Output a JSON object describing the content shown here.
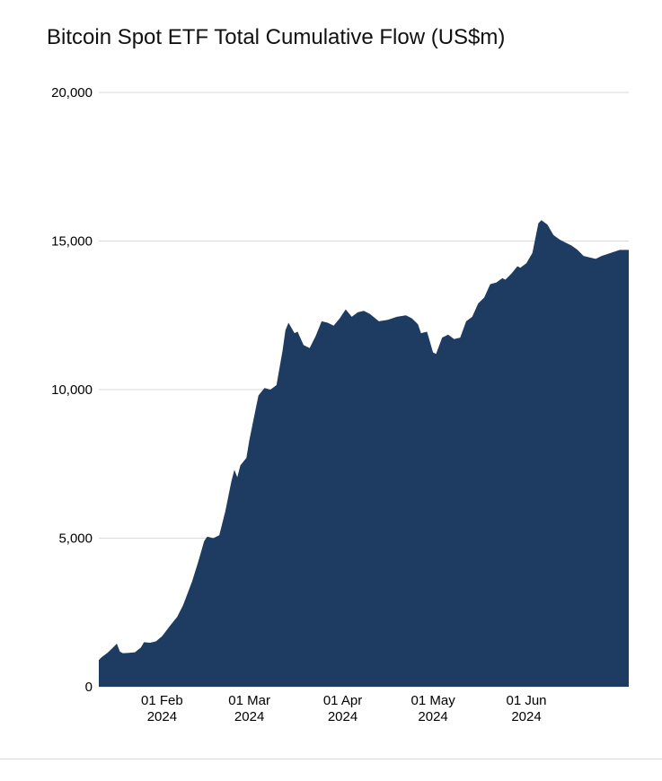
{
  "title": "Bitcoin Spot ETF Total Cumulative Flow (US$m)",
  "colors": {
    "area": "#1e3c61",
    "grid": "#d9d9d9",
    "axis_text": "#000000",
    "background": "#ffffff"
  },
  "chart_data": {
    "type": "area",
    "title": "Bitcoin Spot ETF Total Cumulative Flow (US$m)",
    "xlabel": "",
    "ylabel": "",
    "ylim": [
      0,
      20000
    ],
    "yticks": [
      0,
      5000,
      10000,
      15000,
      20000
    ],
    "ytick_labels": [
      "0",
      "5,000",
      "10,000",
      "15,000",
      "20,000"
    ],
    "x_range": [
      0,
      176
    ],
    "x_unit": "days since 11 Jan 2024",
    "xticks": [
      {
        "day": 21,
        "label": [
          "01 Feb",
          "2024"
        ]
      },
      {
        "day": 50,
        "label": [
          "01 Mar",
          "2024"
        ]
      },
      {
        "day": 81,
        "label": [
          "01 Apr",
          "2024"
        ]
      },
      {
        "day": 111,
        "label": [
          "01 May",
          "2024"
        ]
      },
      {
        "day": 142,
        "label": [
          "01 Jun",
          "2024"
        ]
      }
    ],
    "grid": true,
    "legend": false,
    "series": [
      {
        "name": "Total Cumulative Flow",
        "points": [
          [
            0,
            900
          ],
          [
            1,
            1000
          ],
          [
            3,
            1150
          ],
          [
            4,
            1250
          ],
          [
            6,
            1450
          ],
          [
            7,
            1180
          ],
          [
            8,
            1130
          ],
          [
            10,
            1140
          ],
          [
            12,
            1160
          ],
          [
            14,
            1320
          ],
          [
            15,
            1500
          ],
          [
            17,
            1480
          ],
          [
            19,
            1530
          ],
          [
            21,
            1700
          ],
          [
            24,
            2100
          ],
          [
            26,
            2350
          ],
          [
            28,
            2750
          ],
          [
            31,
            3550
          ],
          [
            33,
            4200
          ],
          [
            35,
            4900
          ],
          [
            36,
            5050
          ],
          [
            38,
            5000
          ],
          [
            40,
            5100
          ],
          [
            42,
            5900
          ],
          [
            44,
            6900
          ],
          [
            45,
            7300
          ],
          [
            46,
            7050
          ],
          [
            47,
            7450
          ],
          [
            49,
            7700
          ],
          [
            50,
            8300
          ],
          [
            52,
            9300
          ],
          [
            53,
            9800
          ],
          [
            55,
            10050
          ],
          [
            57,
            10000
          ],
          [
            59,
            10150
          ],
          [
            61,
            11300
          ],
          [
            62,
            12000
          ],
          [
            63,
            12250
          ],
          [
            65,
            11900
          ],
          [
            66,
            11950
          ],
          [
            68,
            11500
          ],
          [
            70,
            11400
          ],
          [
            72,
            11800
          ],
          [
            74,
            12300
          ],
          [
            76,
            12250
          ],
          [
            78,
            12150
          ],
          [
            80,
            12400
          ],
          [
            82,
            12700
          ],
          [
            84,
            12450
          ],
          [
            86,
            12600
          ],
          [
            88,
            12650
          ],
          [
            90,
            12550
          ],
          [
            93,
            12300
          ],
          [
            96,
            12350
          ],
          [
            99,
            12450
          ],
          [
            102,
            12500
          ],
          [
            104,
            12400
          ],
          [
            106,
            12200
          ],
          [
            107,
            11900
          ],
          [
            109,
            11950
          ],
          [
            111,
            11250
          ],
          [
            112,
            11200
          ],
          [
            114,
            11750
          ],
          [
            116,
            11850
          ],
          [
            118,
            11700
          ],
          [
            120,
            11750
          ],
          [
            122,
            12300
          ],
          [
            124,
            12450
          ],
          [
            126,
            12900
          ],
          [
            128,
            13100
          ],
          [
            130,
            13550
          ],
          [
            132,
            13600
          ],
          [
            134,
            13750
          ],
          [
            135,
            13700
          ],
          [
            137,
            13900
          ],
          [
            139,
            14150
          ],
          [
            140,
            14100
          ],
          [
            142,
            14250
          ],
          [
            144,
            14600
          ],
          [
            146,
            15600
          ],
          [
            147,
            15700
          ],
          [
            149,
            15550
          ],
          [
            151,
            15200
          ],
          [
            153,
            15050
          ],
          [
            155,
            14950
          ],
          [
            157,
            14850
          ],
          [
            159,
            14700
          ],
          [
            161,
            14500
          ],
          [
            163,
            14450
          ],
          [
            165,
            14400
          ],
          [
            167,
            14500
          ],
          [
            170,
            14600
          ],
          [
            173,
            14700
          ],
          [
            176,
            14700
          ]
        ]
      }
    ]
  }
}
